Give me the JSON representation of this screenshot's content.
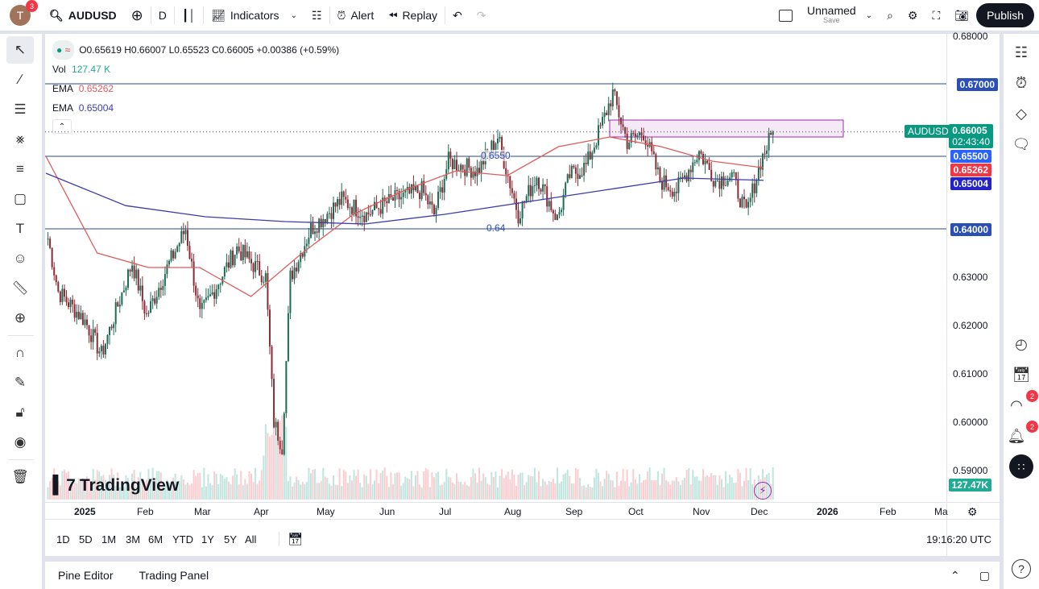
{
  "topbar": {
    "avatar_letter": "T",
    "notifications": "3",
    "symbol": "AUDUSD",
    "interval": "D",
    "indicators": "Indicators",
    "alert": "Alert",
    "replay": "Replay",
    "layout_name": "Unnamed",
    "save": "Save",
    "publish": "Publish"
  },
  "legend": {
    "ohlc": "O0.65619 H0.66007 L0.65523 C0.66005 +0.00386 (+0.59%)",
    "vol_label": "Vol",
    "vol_value": "127.47 K",
    "ema1_label": "EMA",
    "ema1_value": "0.65262",
    "ema2_label": "EMA",
    "ema2_value": "0.65004"
  },
  "price_axis": [
    "0.68000",
    "0.63000",
    "0.62000",
    "0.61000",
    "0.60000",
    "0.59000"
  ],
  "price_labels": {
    "symbol": "AUDUSD",
    "last": "0.66005",
    "countdown": "02:43:40",
    "l1": "0.67000",
    "l2": "0.65500",
    "ema1": "0.65262",
    "ema2": "0.65004",
    "l3": "0.64000",
    "volume": "127.47K"
  },
  "line_labels": {
    "mid": "0.6550",
    "low": "0.64"
  },
  "time_axis": [
    "2025",
    "Feb",
    "Mar",
    "Apr",
    "May",
    "Jun",
    "Jul",
    "Aug",
    "Sep",
    "Oct",
    "Nov",
    "Dec",
    "2026",
    "Feb",
    "Ma"
  ],
  "ranges": [
    "1D",
    "5D",
    "1M",
    "3M",
    "6M",
    "YTD",
    "1Y",
    "5Y",
    "All"
  ],
  "clock": "19:16:20 UTC",
  "bottom": {
    "pine": "Pine Editor",
    "trading": "Trading Panel"
  },
  "logo": "TradingView",
  "right_badges": {
    "ideas": "2",
    "alerts": "2"
  },
  "colors": {
    "up": "#1e6b55",
    "down": "#8a2a35",
    "ema1": "#e05a5a",
    "ema2": "#3c3caa",
    "accent": "#089981"
  },
  "chart_data": {
    "type": "candlestick",
    "symbol": "AUDUSD",
    "interval": "D",
    "ylim": [
      0.585,
      0.68
    ],
    "levels": [
      0.67,
      0.655,
      0.64
    ],
    "zone": [
      0.659,
      0.6625
    ],
    "close_path": [
      [
        "2024-12-15",
        0.638
      ],
      [
        "2024-12-20",
        0.627
      ],
      [
        "2025-01-02",
        0.621
      ],
      [
        "2025-01-10",
        0.614
      ],
      [
        "2025-01-25",
        0.633
      ],
      [
        "2025-02-01",
        0.622
      ],
      [
        "2025-02-10",
        0.631
      ],
      [
        "2025-02-20",
        0.64
      ],
      [
        "2025-02-27",
        0.622
      ],
      [
        "2025-03-17",
        0.636
      ],
      [
        "2025-03-31",
        0.63
      ],
      [
        "2025-04-04",
        0.6
      ],
      [
        "2025-04-08",
        0.595
      ],
      [
        "2025-04-12",
        0.63
      ],
      [
        "2025-04-22",
        0.64
      ],
      [
        "2025-05-07",
        0.646
      ],
      [
        "2025-05-19",
        0.643
      ],
      [
        "2025-06-01",
        0.646
      ],
      [
        "2025-06-15",
        0.648
      ],
      [
        "2025-06-21",
        0.643
      ],
      [
        "2025-06-28",
        0.654
      ],
      [
        "2025-07-12",
        0.652
      ],
      [
        "2025-07-22",
        0.659
      ],
      [
        "2025-08-01",
        0.643
      ],
      [
        "2025-08-10",
        0.651
      ],
      [
        "2025-08-20",
        0.642
      ],
      [
        "2025-08-26",
        0.651
      ],
      [
        "2025-09-03",
        0.653
      ],
      [
        "2025-09-11",
        0.662
      ],
      [
        "2025-09-16",
        0.668
      ],
      [
        "2025-09-23",
        0.658
      ],
      [
        "2025-10-01",
        0.66
      ],
      [
        "2025-10-09",
        0.65
      ],
      [
        "2025-10-17",
        0.648
      ],
      [
        "2025-10-28",
        0.656
      ],
      [
        "2025-11-05",
        0.65
      ],
      [
        "2025-11-13",
        0.651
      ],
      [
        "2025-11-20",
        0.643
      ],
      [
        "2025-11-27",
        0.654
      ],
      [
        "2025-12-03",
        0.66005
      ]
    ],
    "ema_fast": [
      0.655,
      0.635,
      0.632,
      0.632,
      0.626,
      0.635,
      0.643,
      0.648,
      0.652,
      0.651,
      0.657,
      0.659,
      0.657,
      0.654,
      0.65262
    ],
    "ema_slow": [
      0.6515,
      0.6448,
      0.6425,
      0.6415,
      0.641,
      0.643,
      0.6455,
      0.648,
      0.6505,
      0.65004
    ]
  }
}
